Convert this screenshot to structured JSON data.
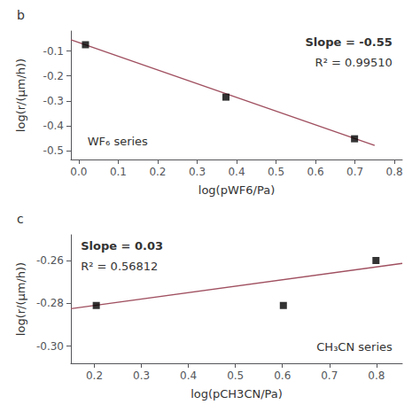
{
  "chart_data": [
    {
      "type": "scatter",
      "title": "b",
      "xlabel": "log(pWF6/Pa)",
      "ylabel": "log(r/(μm/h))",
      "annotations": [
        "Slope = -0.55",
        "R² = 0.99510",
        "WF₆ series"
      ],
      "xlim": [
        -0.02,
        0.82
      ],
      "ylim": [
        -0.535,
        -0.02
      ],
      "xticks": [
        {
          "value": 0.0,
          "label": "0.0"
        },
        0.1,
        0.2,
        0.3,
        0.4,
        0.5,
        0.6,
        0.7,
        0.8
      ],
      "yticks": [
        -0.5,
        -0.4,
        -0.3,
        -0.2,
        -0.1
      ],
      "grid": false,
      "series": [
        {
          "type": "line",
          "color": "#a05060",
          "x": [
            -0.02,
            0.75
          ],
          "values": [
            -0.055,
            -0.4785
          ]
        },
        {
          "type": "scatter",
          "color": "black",
          "marker": "square",
          "x": [
            0.017,
            0.373,
            0.699
          ],
          "values": [
            -0.075,
            -0.285,
            -0.452
          ]
        }
      ]
    },
    {
      "type": "scatter",
      "title": "c",
      "xlabel": "log(pCH3CN/Pa)",
      "ylabel": "log(r/(μm/h))",
      "annotations": [
        "Slope = 0.03",
        "R² = 0.56812",
        "CH₃CN series"
      ],
      "xlim": [
        0.15,
        0.855
      ],
      "ylim": [
        -0.308,
        -0.248
      ],
      "xticks": [
        0.2,
        0.3,
        0.4,
        0.5,
        0.6,
        0.7,
        0.8
      ],
      "yticks": [
        {
          "value": -0.3,
          "label": "-0.30"
        },
        -0.28,
        -0.26
      ],
      "grid": false,
      "series": [
        {
          "type": "line",
          "color": "#a05060",
          "x": [
            0.15,
            0.855
          ],
          "values": [
            -0.2825,
            -0.26135
          ]
        },
        {
          "type": "scatter",
          "color": "black",
          "marker": "square",
          "x": [
            0.204,
            0.602,
            0.799
          ],
          "values": [
            -0.281,
            -0.281,
            -0.26
          ]
        }
      ]
    }
  ]
}
